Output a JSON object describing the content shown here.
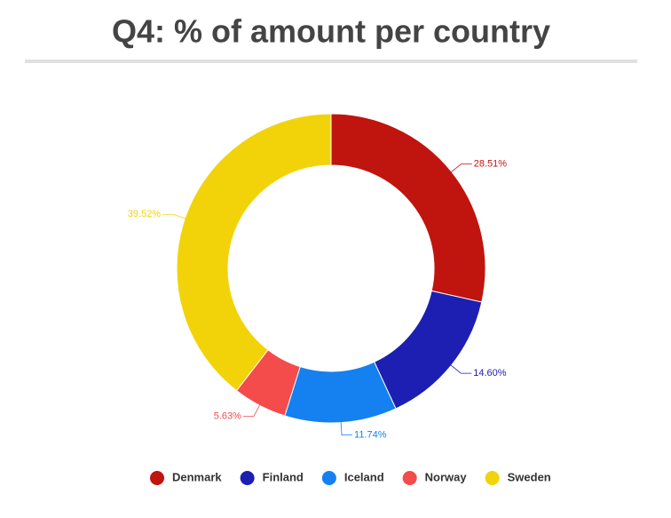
{
  "chart_data": {
    "type": "donut",
    "title": "Q4: % of amount per country",
    "categories": [
      "Denmark",
      "Finland",
      "Iceland",
      "Norway",
      "Sweden"
    ],
    "values": [
      28.51,
      14.6,
      11.74,
      5.63,
      39.52
    ],
    "value_labels": [
      "28.51%",
      "14.60%",
      "11.74%",
      "5.63%",
      "39.52%"
    ],
    "colors": [
      "#c0140f",
      "#1c1fb1",
      "#1580f0",
      "#f44b4b",
      "#f2d30a"
    ],
    "legend": "bottom"
  }
}
